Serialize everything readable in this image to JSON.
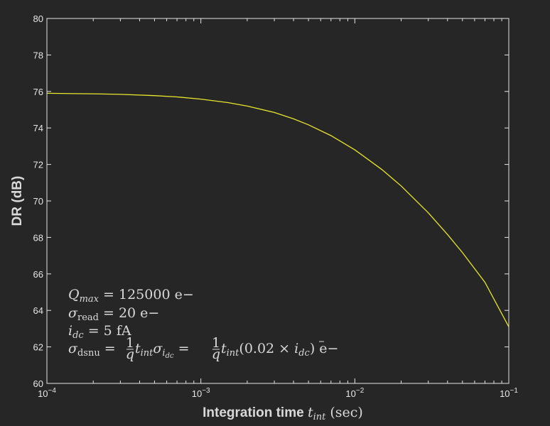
{
  "chart_data": {
    "type": "line",
    "xlabel": "Integration time t_int (sec)",
    "ylabel": "DR (dB)",
    "xscale": "log",
    "xlim": [
      0.0001,
      0.1
    ],
    "ylim": [
      60,
      80
    ],
    "x_ticks": [
      {
        "value": 0.0001,
        "base": "10",
        "exp": "−4"
      },
      {
        "value": 0.001,
        "base": "10",
        "exp": "−3"
      },
      {
        "value": 0.01,
        "base": "10",
        "exp": "−2"
      },
      {
        "value": 0.1,
        "base": "10",
        "exp": "−1"
      }
    ],
    "y_ticks": [
      60,
      62,
      64,
      66,
      68,
      70,
      72,
      74,
      76,
      78,
      80
    ],
    "grid": false,
    "line_color": "#e6e62e",
    "series": [
      {
        "x": [
          0.0001,
          0.0002,
          0.0003,
          0.0005,
          0.0007,
          0.001,
          0.0015,
          0.002,
          0.003,
          0.004,
          0.005,
          0.007,
          0.01,
          0.015,
          0.02,
          0.03,
          0.04,
          0.05,
          0.07,
          0.1
        ],
        "y": [
          75.9,
          75.87,
          75.84,
          75.77,
          75.7,
          75.58,
          75.39,
          75.2,
          74.85,
          74.5,
          74.17,
          73.58,
          72.8,
          71.72,
          70.82,
          69.35,
          68.16,
          67.17,
          65.54,
          63.1
        ]
      }
    ],
    "annotations": {
      "line1": {
        "sym": "Q",
        "sub": "max",
        "rest": " = 125000 e−"
      },
      "line2": {
        "sym": "σ",
        "sub": "read",
        "rest": " = 20 e−"
      },
      "line3": {
        "sym": "i",
        "sub": "dc",
        "rest": " = 5 fA"
      },
      "line4": {
        "sym": "σ",
        "sub": "dsnu",
        "eq": " = ",
        "frac_num": "1",
        "frac_den": "q",
        "t": "t",
        "t_sub": "int",
        "sig": "σ",
        "sig_sub": "i",
        "sig_subsub": "dc",
        "tail": "(0.02 × ",
        "ibar": "i",
        "ibar_sub": "dc",
        "end": ") e−"
      }
    }
  }
}
